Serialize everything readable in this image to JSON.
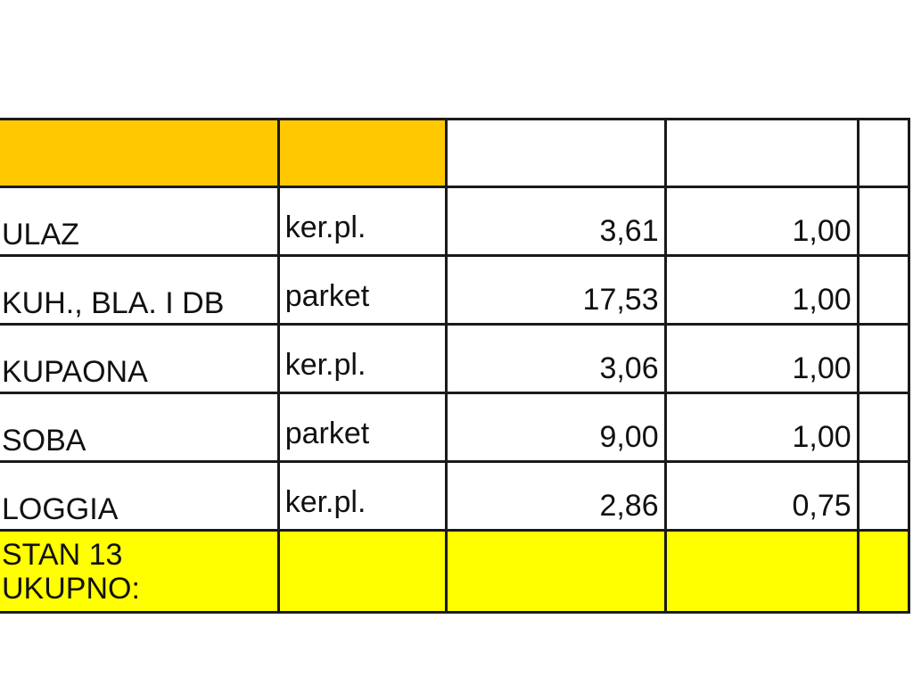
{
  "colors": {
    "header_fill": "#ffc800",
    "total_fill": "#ffff00"
  },
  "rows": [
    {
      "room": "ULAZ",
      "floor": "ker.pl.",
      "area": "3,61",
      "coef": "1,00"
    },
    {
      "room": "KUH., BLA. I DB",
      "floor": "parket",
      "area": "17,53",
      "coef": "1,00"
    },
    {
      "room": "KUPAONA",
      "floor": "ker.pl.",
      "area": "3,06",
      "coef": "1,00"
    },
    {
      "room": "SOBA",
      "floor": "parket",
      "area": "9,00",
      "coef": "1,00"
    },
    {
      "room": "LOGGIA",
      "floor": "ker.pl.",
      "area": "2,86",
      "coef": "0,75"
    }
  ],
  "total": {
    "label_line1": "STAN 13",
    "label_line2": "UKUPNO:"
  }
}
